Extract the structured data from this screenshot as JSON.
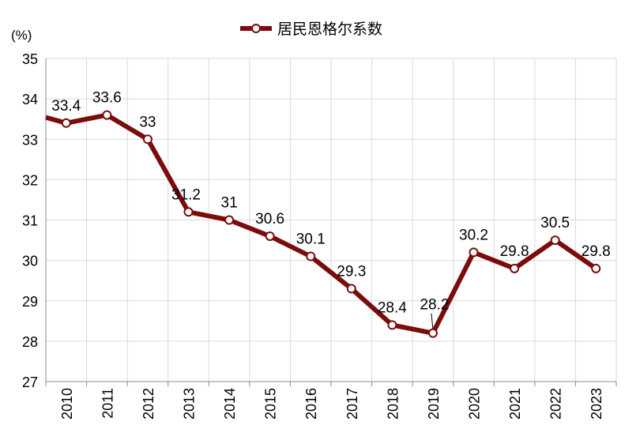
{
  "chart_data": {
    "type": "line",
    "title": "",
    "xlabel": "",
    "ylabel": "(%)",
    "ylim": [
      27,
      35
    ],
    "yticks": [
      27,
      28,
      29,
      30,
      31,
      32,
      33,
      34,
      35
    ],
    "grid": true,
    "legend_position": "top",
    "x": [
      "2010",
      "2011",
      "2012",
      "2013",
      "2014",
      "2015",
      "2016",
      "2017",
      "2018",
      "2019",
      "2020",
      "2021",
      "2022",
      "2023"
    ],
    "series": [
      {
        "name": "居民恩格尔系数",
        "color": "#7a0c0c",
        "values": [
          33.4,
          33.6,
          33,
          31.2,
          31,
          30.6,
          30.1,
          29.3,
          28.4,
          28.2,
          30.2,
          29.8,
          30.5,
          29.8
        ],
        "data_labels": [
          "33.4",
          "33.6",
          "33",
          "31.2",
          "31",
          "30.6",
          "30.1",
          "29.3",
          "28.4",
          "28.2",
          "30.2",
          "29.8",
          "30.5",
          "29.8"
        ]
      }
    ]
  }
}
